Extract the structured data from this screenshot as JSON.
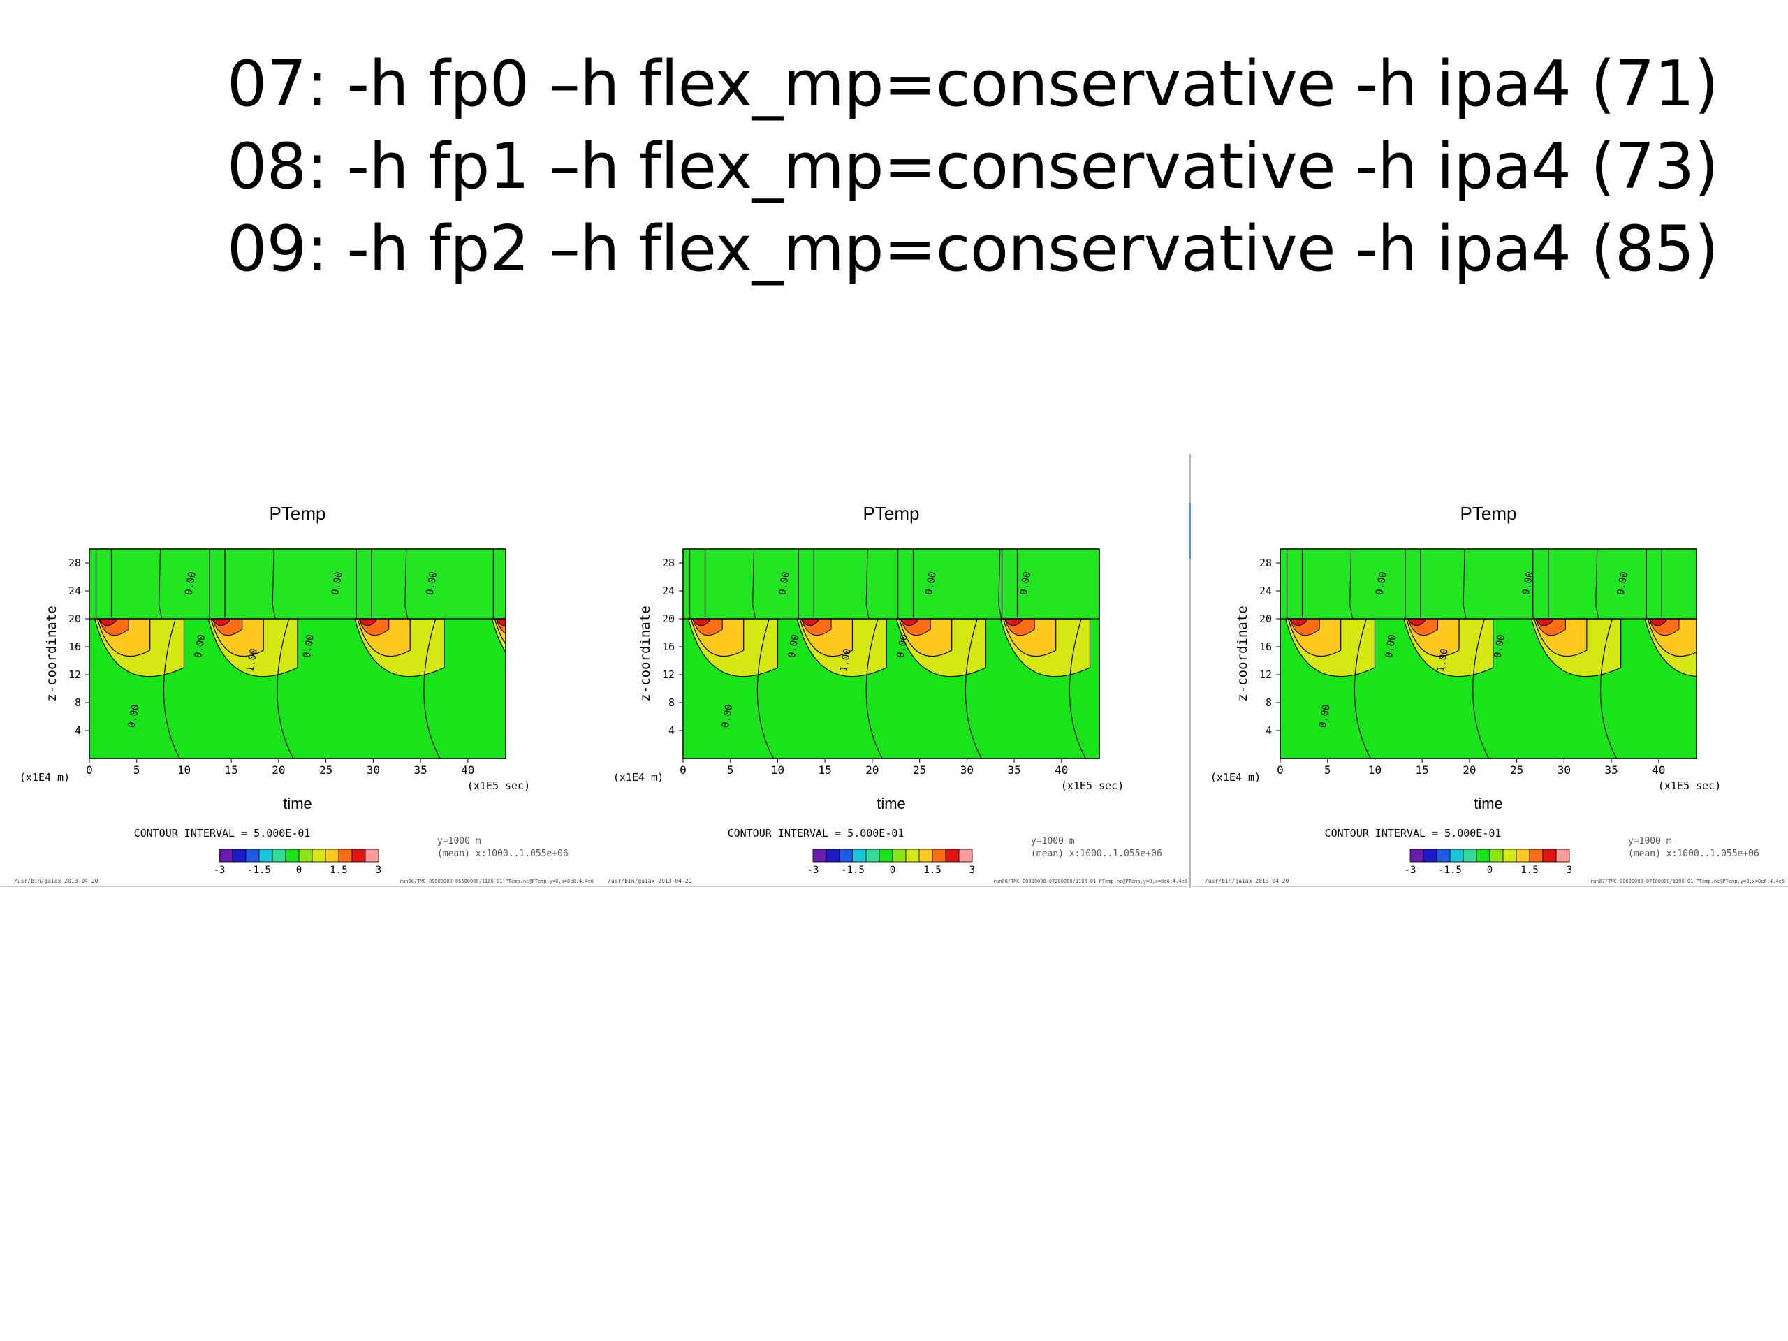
{
  "slide": {
    "lines": [
      "07: -h fp0 –h flex_mp=conservative -h ipa4 (71)",
      "08: -h fp1 –h flex_mp=conservative -h ipa4 (73)",
      "09: -h fp2 –h flex_mp=conservative -h ipa4 (85)"
    ]
  },
  "colors": {
    "scale": [
      "#6a1cae",
      "#1c1ccc",
      "#1f5ce6",
      "#19c8d8",
      "#33dd99",
      "#19e319",
      "#8fe314",
      "#d6e814",
      "#ffc81e",
      "#ff6e14",
      "#e11414",
      "#ff9a9a"
    ],
    "background_field": "#19e319"
  },
  "chart_data": [
    {
      "type": "contour",
      "title": "PTemp",
      "xlabel": "time",
      "ylabel": "z-coordinate",
      "x_unit": "(x1E5 sec)",
      "y_unit": "(x1E4 m)",
      "xlim": [
        0,
        44
      ],
      "ylim": [
        0,
        30
      ],
      "x_ticks": [
        0,
        5,
        10,
        15,
        20,
        25,
        30,
        35,
        40
      ],
      "y_ticks": [
        4,
        8,
        12,
        16,
        20,
        24,
        28
      ],
      "contour_labels": [
        "0.00",
        "0.00",
        "0.00",
        "0.00",
        "1.00",
        "0.00",
        "0.00"
      ],
      "contour_interval": "CONTOUR INTERVAL = 5.000E-01",
      "annotation": [
        "y=1000 m",
        "(mean) x:1000..1.055e+06"
      ],
      "colorbar_ticks": [
        "-3",
        "-1.5",
        "0",
        "1.5",
        "3"
      ],
      "footer_left": "/usr/bin/gaiax  2013-04-20",
      "footer_right": "run06/TMC_00000000-06500000/1100-01_PTemp.nc@PTemp,y=0,x=0e6:4.4e6",
      "peak_times": [
        1,
        13,
        28.5,
        43
      ]
    },
    {
      "type": "contour",
      "title": "PTemp",
      "xlabel": "time",
      "ylabel": "z-coordinate",
      "x_unit": "(x1E5 sec)",
      "y_unit": "(x1E4 m)",
      "xlim": [
        0,
        44
      ],
      "ylim": [
        0,
        30
      ],
      "x_ticks": [
        0,
        5,
        10,
        15,
        20,
        25,
        30,
        35,
        40
      ],
      "y_ticks": [
        4,
        8,
        12,
        16,
        20,
        24,
        28
      ],
      "contour_labels": [
        "0.00",
        "0.00",
        "0.00",
        "0.00",
        "1.00",
        "0.00",
        "0.00"
      ],
      "contour_interval": "CONTOUR INTERVAL = 5.000E-01",
      "annotation": [
        "y=1000 m",
        "(mean) x:1000..1.055e+06"
      ],
      "colorbar_ticks": [
        "-3",
        "-1.5",
        "0",
        "1.5",
        "3"
      ],
      "footer_left": "/usr/bin/gaiax  2013-04-20",
      "footer_right": "run08/TMC_00000000-07200000/1100-01_PTemp.nc@PTemp,y=0,x=0e6:4.4e6",
      "peak_times": [
        1,
        12.5,
        23,
        34
      ]
    },
    {
      "type": "contour",
      "title": "PTemp",
      "xlabel": "time",
      "ylabel": "z-coordinate",
      "x_unit": "(x1E5 sec)",
      "y_unit": "(x1E4 m)",
      "xlim": [
        0,
        44
      ],
      "ylim": [
        0,
        30
      ],
      "x_ticks": [
        0,
        5,
        10,
        15,
        20,
        25,
        30,
        35,
        40
      ],
      "y_ticks": [
        4,
        8,
        12,
        16,
        20,
        24,
        28
      ],
      "contour_labels": [
        "0.00",
        "0.00",
        "0.00",
        "0.00",
        "1.00",
        "0.00",
        "0.00"
      ],
      "contour_interval": "CONTOUR INTERVAL = 5.000E-01",
      "annotation": [
        "y=1000 m",
        "(mean) x:1000..1.055e+06"
      ],
      "colorbar_ticks": [
        "-3",
        "-1.5",
        "0",
        "1.5",
        "3"
      ],
      "footer_left": "/usr/bin/gaiax  2013-04-20",
      "footer_right": "run07/TMC_00000000-07100000/1100-01_PTemp.nc@PTemp,y=0,x=0e6:4.4e6",
      "peak_times": [
        1,
        13.5,
        27,
        39
      ]
    }
  ]
}
